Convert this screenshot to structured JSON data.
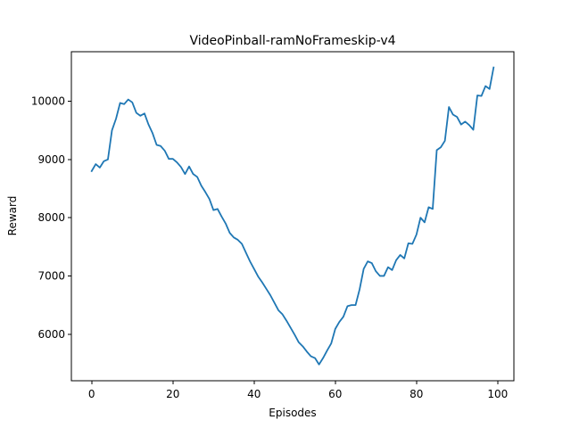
{
  "chart_data": {
    "type": "line",
    "title": "VideoPinball-ramNoFrameskip-v4",
    "xlabel": "Episodes",
    "ylabel": "Reward",
    "xlim": [
      -5,
      104
    ],
    "ylim": [
      5200,
      10850
    ],
    "xticks": [
      0,
      20,
      40,
      60,
      80,
      100
    ],
    "yticks": [
      6000,
      7000,
      8000,
      9000,
      10000
    ],
    "grid": false,
    "legend": "none",
    "series": [
      {
        "color": "#1f77b4",
        "x": [
          0,
          1,
          2,
          3,
          4,
          5,
          6,
          7,
          8,
          9,
          10,
          11,
          12,
          13,
          14,
          15,
          16,
          17,
          18,
          19,
          20,
          21,
          22,
          23,
          24,
          25,
          26,
          27,
          28,
          29,
          30,
          31,
          32,
          33,
          34,
          35,
          36,
          37,
          38,
          39,
          40,
          41,
          42,
          43,
          44,
          45,
          46,
          47,
          48,
          49,
          50,
          51,
          52,
          53,
          54,
          55,
          56,
          57,
          58,
          59,
          60,
          61,
          62,
          63,
          64,
          65,
          66,
          67,
          68,
          69,
          70,
          71,
          72,
          73,
          74,
          75,
          76,
          77,
          78,
          79,
          80,
          81,
          82,
          83,
          84,
          85,
          86,
          87,
          88,
          89,
          90,
          91,
          92,
          93,
          94,
          95,
          96,
          97,
          98,
          99
        ],
        "values": [
          8800,
          8920,
          8860,
          8970,
          9000,
          9500,
          9700,
          9970,
          9950,
          10030,
          9980,
          9800,
          9750,
          9790,
          9600,
          9450,
          9250,
          9230,
          9150,
          9010,
          9010,
          8950,
          8870,
          8750,
          8880,
          8750,
          8700,
          8550,
          8440,
          8320,
          8130,
          8150,
          8020,
          7900,
          7740,
          7660,
          7620,
          7550,
          7400,
          7250,
          7120,
          6990,
          6890,
          6780,
          6670,
          6540,
          6410,
          6340,
          6230,
          6110,
          5990,
          5860,
          5790,
          5700,
          5620,
          5590,
          5480,
          5590,
          5720,
          5840,
          6090,
          6210,
          6300,
          6480,
          6500,
          6500,
          6770,
          7120,
          7250,
          7220,
          7080,
          7000,
          7000,
          7150,
          7100,
          7270,
          7360,
          7300,
          7560,
          7550,
          7710,
          8000,
          7920,
          8180,
          8150,
          9160,
          9210,
          9320,
          9900,
          9770,
          9730,
          9600,
          9650,
          9590,
          9510,
          10100,
          10090,
          10260,
          10210,
          10580
        ]
      }
    ]
  }
}
